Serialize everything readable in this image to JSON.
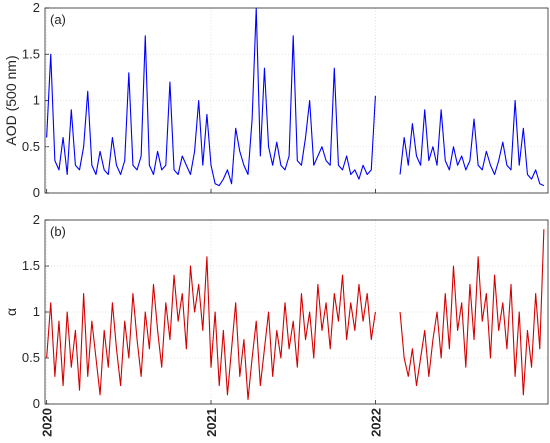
{
  "chart_data": [
    {
      "type": "line",
      "annotation": "(a)",
      "y_label": "AOD (500 nm)",
      "grid": true,
      "xlim": [
        2019.99,
        2023.05
      ],
      "xticks": [
        2020,
        2021,
        2022
      ],
      "ylim": [
        0,
        2
      ],
      "yticks": [
        0,
        0.5,
        1,
        1.5,
        2
      ],
      "x": [
        2020,
        2020.025,
        2020.05,
        2020.075,
        2020.1,
        2020.125,
        2020.15,
        2020.175,
        2020.2,
        2020.225,
        2020.25,
        2020.275,
        2020.3,
        2020.325,
        2020.35,
        2020.375,
        2020.4,
        2020.425,
        2020.45,
        2020.475,
        2020.5,
        2020.525,
        2020.55,
        2020.575,
        2020.6,
        2020.625,
        2020.65,
        2020.675,
        2020.7,
        2020.725,
        2020.75,
        2020.775,
        2020.8,
        2020.825,
        2020.85,
        2020.875,
        2020.9,
        2020.925,
        2020.95,
        2020.975,
        2021,
        2021.025,
        2021.05,
        2021.075,
        2021.1,
        2021.125,
        2021.15,
        2021.175,
        2021.2,
        2021.225,
        2021.25,
        2021.275,
        2021.3,
        2021.325,
        2021.35,
        2021.375,
        2021.4,
        2021.425,
        2021.45,
        2021.475,
        2021.5,
        2021.525,
        2021.55,
        2021.575,
        2021.6,
        2021.625,
        2021.65,
        2021.675,
        2021.7,
        2021.725,
        2021.75,
        2021.775,
        2021.8,
        2021.825,
        2021.85,
        2021.875,
        2021.9,
        2021.925,
        2021.95,
        2021.975,
        2022,
        2022.025,
        2022.05,
        2022.075,
        2022.1,
        2022.125,
        2022.15,
        2022.175,
        2022.2,
        2022.225,
        2022.25,
        2022.275,
        2022.3,
        2022.325,
        2022.35,
        2022.375,
        2022.4,
        2022.425,
        2022.45,
        2022.475,
        2022.5,
        2022.525,
        2022.55,
        2022.575,
        2022.6,
        2022.625,
        2022.65,
        2022.675,
        2022.7,
        2022.725,
        2022.75,
        2022.775,
        2022.8,
        2022.825,
        2022.85,
        2022.875,
        2022.9,
        2022.925,
        2022.95,
        2022.975,
        2023,
        2023.025
      ],
      "series": [
        {
          "name": "AOD",
          "color": "#0000ff",
          "values": [
            0.6,
            1.5,
            0.35,
            0.25,
            0.6,
            0.2,
            0.9,
            0.3,
            0.25,
            0.5,
            1.1,
            0.3,
            0.2,
            0.45,
            0.25,
            0.2,
            0.6,
            0.3,
            0.2,
            0.35,
            1.3,
            0.3,
            0.25,
            0.4,
            1.7,
            0.3,
            0.2,
            0.45,
            0.25,
            0.3,
            1.2,
            0.25,
            0.2,
            0.4,
            0.3,
            0.2,
            0.45,
            1.0,
            0.3,
            0.85,
            0.3,
            0.1,
            0.08,
            0.15,
            0.25,
            0.1,
            0.7,
            0.45,
            0.3,
            0.2,
            0.8,
            2.0,
            0.4,
            1.35,
            0.5,
            0.3,
            0.55,
            0.3,
            0.25,
            0.4,
            1.7,
            0.35,
            0.3,
            0.6,
            1.0,
            0.3,
            0.4,
            0.5,
            0.35,
            0.3,
            1.35,
            0.3,
            0.25,
            0.4,
            0.2,
            0.25,
            0.15,
            0.3,
            0.2,
            0.25,
            1.05,
            null,
            null,
            null,
            null,
            null,
            0.2,
            0.6,
            0.3,
            0.75,
            0.4,
            0.3,
            0.9,
            0.35,
            0.5,
            0.3,
            0.9,
            0.35,
            0.25,
            0.5,
            0.3,
            0.4,
            0.25,
            0.35,
            0.8,
            0.3,
            0.25,
            0.45,
            0.3,
            0.2,
            0.35,
            0.55,
            0.3,
            0.25,
            1.0,
            0.3,
            0.7,
            0.2,
            0.15,
            0.25,
            0.1,
            0.08
          ]
        }
      ]
    },
    {
      "type": "line",
      "annotation": "(b)",
      "y_label": "α",
      "grid": true,
      "xlim": [
        2019.99,
        2023.05
      ],
      "xticks": [
        2020,
        2021,
        2022
      ],
      "ylim": [
        0,
        2
      ],
      "yticks": [
        0,
        0.5,
        1,
        1.5,
        2
      ],
      "x": [
        2020,
        2020.025,
        2020.05,
        2020.075,
        2020.1,
        2020.125,
        2020.15,
        2020.175,
        2020.2,
        2020.225,
        2020.25,
        2020.275,
        2020.3,
        2020.325,
        2020.35,
        2020.375,
        2020.4,
        2020.425,
        2020.45,
        2020.475,
        2020.5,
        2020.525,
        2020.55,
        2020.575,
        2020.6,
        2020.625,
        2020.65,
        2020.675,
        2020.7,
        2020.725,
        2020.75,
        2020.775,
        2020.8,
        2020.825,
        2020.85,
        2020.875,
        2020.9,
        2020.925,
        2020.95,
        2020.975,
        2021,
        2021.025,
        2021.05,
        2021.075,
        2021.1,
        2021.125,
        2021.15,
        2021.175,
        2021.2,
        2021.225,
        2021.25,
        2021.275,
        2021.3,
        2021.325,
        2021.35,
        2021.375,
        2021.4,
        2021.425,
        2021.45,
        2021.475,
        2021.5,
        2021.525,
        2021.55,
        2021.575,
        2021.6,
        2021.625,
        2021.65,
        2021.675,
        2021.7,
        2021.725,
        2021.75,
        2021.775,
        2021.8,
        2021.825,
        2021.85,
        2021.875,
        2021.9,
        2021.925,
        2021.95,
        2021.975,
        2022,
        2022.025,
        2022.05,
        2022.075,
        2022.1,
        2022.125,
        2022.15,
        2022.175,
        2022.2,
        2022.225,
        2022.25,
        2022.275,
        2022.3,
        2022.325,
        2022.35,
        2022.375,
        2022.4,
        2022.425,
        2022.45,
        2022.475,
        2022.5,
        2022.525,
        2022.55,
        2022.575,
        2022.6,
        2022.625,
        2022.65,
        2022.675,
        2022.7,
        2022.725,
        2022.75,
        2022.775,
        2022.8,
        2022.825,
        2022.85,
        2022.875,
        2022.9,
        2022.925,
        2022.95,
        2022.975,
        2023,
        2023.025
      ],
      "series": [
        {
          "name": "α",
          "color": "#d40000",
          "values": [
            0.5,
            1.1,
            0.3,
            0.9,
            0.2,
            1.0,
            0.4,
            0.8,
            0.15,
            1.2,
            0.3,
            0.9,
            0.5,
            0.1,
            0.8,
            0.4,
            1.1,
            0.6,
            0.2,
            0.9,
            0.5,
            1.2,
            0.7,
            0.3,
            1.0,
            0.6,
            1.3,
            0.8,
            0.4,
            1.1,
            0.7,
            1.4,
            0.9,
            1.2,
            0.6,
            1.5,
            1.0,
            1.3,
            0.8,
            1.6,
            0.4,
            1.0,
            0.2,
            0.8,
            0.1,
            0.6,
            1.1,
            0.3,
            0.7,
            0.05,
            0.5,
            0.9,
            0.2,
            0.6,
            1.0,
            0.3,
            0.8,
            0.5,
            1.1,
            0.6,
            0.9,
            0.4,
            1.2,
            0.7,
            1.0,
            0.5,
            1.3,
            0.8,
            1.1,
            0.6,
            1.2,
            0.9,
            1.4,
            0.7,
            1.1,
            0.8,
            1.3,
            0.9,
            1.2,
            0.7,
            1.0,
            null,
            null,
            null,
            null,
            null,
            1.0,
            0.5,
            0.3,
            0.6,
            0.2,
            0.5,
            0.8,
            0.3,
            0.7,
            1.0,
            0.5,
            1.2,
            0.6,
            1.5,
            0.8,
            1.1,
            0.4,
            1.3,
            0.7,
            1.6,
            0.9,
            1.2,
            0.5,
            1.4,
            0.8,
            1.1,
            0.6,
            1.3,
            0.3,
            1.0,
            0.1,
            0.8,
            0.4,
            1.2,
            0.6,
            1.9
          ]
        }
      ]
    }
  ]
}
